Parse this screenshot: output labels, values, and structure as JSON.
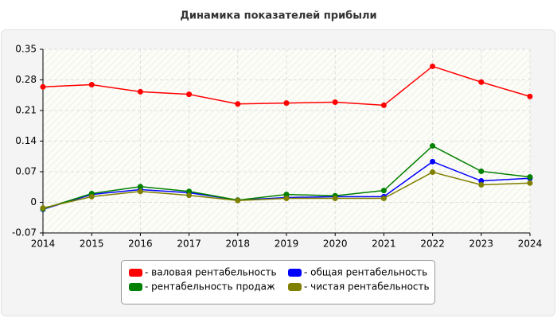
{
  "chart_data": {
    "type": "line",
    "title": "Динамика показателей прибыли",
    "x": [
      2014,
      2015,
      2016,
      2017,
      2018,
      2019,
      2020,
      2021,
      2022,
      2023,
      2024
    ],
    "xlim": [
      2014,
      2024
    ],
    "xticks": [
      2014,
      2015,
      2016,
      2017,
      2018,
      2019,
      2020,
      2021,
      2022,
      2023,
      2024
    ],
    "ylim": [
      -0.07,
      0.35
    ],
    "yticks": [
      -0.07,
      0,
      0.07,
      0.14,
      0.21,
      0.28,
      0.35
    ],
    "grid": true,
    "series": [
      {
        "name": "- валовая рентабельность",
        "color": "#ff0000",
        "values": [
          0.264,
          0.269,
          0.253,
          0.247,
          0.225,
          0.227,
          0.229,
          0.222,
          0.311,
          0.275,
          0.242
        ]
      },
      {
        "name": "- общая рентабельность",
        "color": "#0000ff",
        "values": [
          -0.016,
          0.018,
          0.029,
          0.022,
          0.005,
          0.011,
          0.013,
          0.013,
          0.093,
          0.049,
          0.055
        ]
      },
      {
        "name": "- рентабельность продаж",
        "color": "#008000",
        "values": [
          -0.015,
          0.02,
          0.036,
          0.025,
          0.005,
          0.018,
          0.015,
          0.027,
          0.129,
          0.071,
          0.058
        ]
      },
      {
        "name": "- чистая рентабельность",
        "color": "#808000",
        "values": [
          -0.013,
          0.013,
          0.025,
          0.016,
          0.004,
          0.009,
          0.009,
          0.009,
          0.069,
          0.04,
          0.044
        ]
      }
    ]
  }
}
